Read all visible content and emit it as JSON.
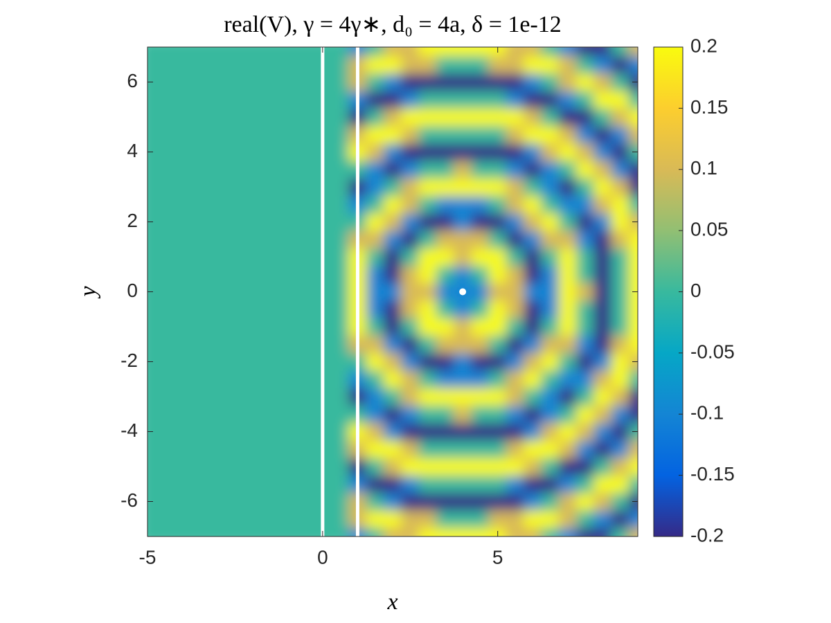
{
  "chart_data": {
    "type": "heatmap",
    "title": "real(V), γ = 4γ∗, d₀ = 4a, δ = 1e-12",
    "xlabel": "x",
    "ylabel": "y",
    "xlim": [
      -5,
      9
    ],
    "ylim": [
      -7,
      7
    ],
    "xticks": [
      -5,
      0,
      5
    ],
    "yticks": [
      -6,
      -4,
      -2,
      0,
      2,
      4,
      6
    ],
    "colorbar": {
      "lim": [
        -0.2,
        0.2
      ],
      "ticks": [
        -0.2,
        -0.15,
        -0.1,
        -0.05,
        0,
        0.05,
        0.1,
        0.15,
        0.2
      ]
    },
    "colormap": [
      "#352a87",
      "#0363e1",
      "#1485d4",
      "#06a7c6",
      "#38b99e",
      "#92bf73",
      "#d9ba56",
      "#fcce2e",
      "#f9fb0e"
    ],
    "walls": [
      0,
      1
    ],
    "source": {
      "x": 4,
      "y": 0
    },
    "marker_color": "#ffffff",
    "x": [
      -5,
      -4.5,
      -4,
      -3.5,
      -3,
      -2.5,
      -2,
      -1.5,
      -1,
      -0.5,
      0,
      0.5,
      1,
      1.5,
      2,
      2.5,
      3,
      3.5,
      4,
      4.5,
      5,
      5.5,
      6,
      6.5,
      7,
      7.5,
      8,
      8.5,
      9
    ],
    "y": [
      -7,
      -6.5,
      -6,
      -5.5,
      -5,
      -4.5,
      -4,
      -3.5,
      -3,
      -2.5,
      -2,
      -1.5,
      -1,
      -0.5,
      0,
      0.5,
      1,
      1.5,
      2,
      2.5,
      3,
      3.5,
      4,
      4.5,
      5,
      5.5,
      6,
      6.5,
      7
    ],
    "z": [
      [
        0,
        0,
        0,
        0,
        0,
        0,
        0,
        0,
        0,
        0,
        0,
        0,
        -0.1,
        0,
        0.1,
        0.1,
        0.2,
        0.2,
        0.2,
        0.2,
        0.2,
        0.1,
        0.1,
        0,
        -0.1,
        -0.2,
        -0.2,
        0,
        0.1
      ],
      [
        0,
        0,
        0,
        0,
        0,
        0,
        0,
        0,
        0,
        0,
        0,
        0,
        0.1,
        0.2,
        0.2,
        0.1,
        0.1,
        0,
        0,
        0,
        0.1,
        0.1,
        0.2,
        0.2,
        0.1,
        0,
        -0.1,
        -0.2,
        -0.1
      ],
      [
        0,
        0,
        0,
        0,
        0,
        0,
        0,
        0,
        0,
        0,
        0,
        0,
        0.1,
        0,
        -0.1,
        -0.2,
        -0.2,
        -0.2,
        -0.2,
        -0.2,
        -0.2,
        -0.2,
        -0.1,
        0,
        0.1,
        0.2,
        0.1,
        0,
        -0.2
      ],
      [
        0,
        0,
        0,
        0,
        0,
        0,
        0,
        0,
        0,
        0,
        0,
        0,
        -0.1,
        -0.2,
        -0.2,
        -0.1,
        0,
        0,
        0,
        0,
        0,
        -0.1,
        -0.2,
        -0.2,
        -0.1,
        0,
        0.2,
        0.2,
        0
      ],
      [
        0,
        0,
        0,
        0,
        0,
        0,
        0,
        0,
        0,
        0,
        0,
        0,
        -0.2,
        0,
        0.1,
        0.2,
        0.2,
        0.2,
        0.2,
        0.2,
        0.2,
        0.2,
        0.1,
        0,
        -0.2,
        -0.2,
        0,
        0.1,
        0.2
      ],
      [
        0,
        0,
        0,
        0,
        0,
        0,
        0,
        0,
        0,
        0,
        0,
        0,
        0.1,
        0.2,
        0.2,
        0.1,
        0,
        0,
        0,
        0,
        0,
        0.1,
        0.2,
        0.2,
        0.1,
        -0.1,
        -0.2,
        -0.1,
        0.1
      ],
      [
        0,
        0,
        0,
        0,
        0,
        0,
        0,
        0,
        0,
        0,
        0,
        0,
        0.2,
        0.1,
        -0.1,
        -0.2,
        -0.2,
        -0.2,
        -0.2,
        -0.2,
        -0.2,
        -0.2,
        -0.1,
        0.1,
        0.2,
        0.1,
        -0.1,
        -0.2,
        0
      ],
      [
        0,
        0,
        0,
        0,
        0,
        0,
        0,
        0,
        0,
        0,
        0,
        0,
        0,
        -0.1,
        -0.2,
        -0.1,
        0,
        0,
        0.1,
        0,
        0,
        -0.1,
        -0.2,
        -0.1,
        0,
        0.2,
        0.1,
        -0.1,
        -0.2
      ],
      [
        0,
        0,
        0,
        0,
        0,
        0,
        0,
        0,
        0,
        0,
        0,
        0,
        -0.2,
        -0.1,
        0,
        0.1,
        0.2,
        0.2,
        0.2,
        0.2,
        0.2,
        0.1,
        0,
        -0.1,
        -0.2,
        0,
        0.2,
        0.1,
        -0.2
      ],
      [
        0,
        0,
        0,
        0,
        0,
        0,
        0,
        0,
        0,
        0,
        0,
        0,
        -0.1,
        0,
        0.2,
        0.1,
        0,
        -0.1,
        -0.1,
        -0.1,
        0,
        0.1,
        0.2,
        0,
        -0.1,
        -0.1,
        0.1,
        0.2,
        0
      ],
      [
        0,
        0,
        0,
        0,
        0,
        0,
        0,
        0,
        0,
        0,
        0,
        0,
        0,
        0.2,
        0.1,
        -0.1,
        -0.2,
        -0.2,
        -0.1,
        -0.2,
        -0.2,
        -0.1,
        0.1,
        0.2,
        0,
        -0.2,
        -0.1,
        0.2,
        0.1
      ],
      [
        0,
        0,
        0,
        0,
        0,
        0,
        0,
        0,
        0,
        0,
        0,
        0,
        0.1,
        0.1,
        -0.1,
        -0.2,
        0,
        0.1,
        0.1,
        0.1,
        0,
        -0.2,
        -0.1,
        0.1,
        0.1,
        -0.1,
        -0.2,
        0.1,
        0.2
      ],
      [
        0,
        0,
        0,
        0,
        0,
        0,
        0,
        0,
        0,
        0,
        0,
        0,
        0.2,
        0,
        -0.2,
        0,
        0.2,
        0.2,
        0.1,
        0.2,
        0.2,
        0,
        -0.2,
        0,
        0.2,
        0,
        -0.2,
        0,
        0.2
      ],
      [
        0,
        0,
        0,
        0,
        0,
        0,
        0,
        0,
        0,
        0,
        0,
        0,
        0.2,
        -0.1,
        -0.2,
        0.1,
        0.2,
        0,
        -0.1,
        0,
        0.2,
        0.1,
        -0.2,
        -0.1,
        0.2,
        0,
        -0.2,
        0,
        0.2
      ],
      [
        0,
        0,
        0,
        0,
        0,
        0,
        0,
        0,
        0,
        0,
        0,
        0,
        0.2,
        -0.1,
        -0.1,
        0.1,
        0.1,
        -0.1,
        -0.1,
        -0.1,
        0.1,
        0.1,
        -0.1,
        -0.1,
        0.2,
        0.1,
        -0.2,
        0,
        0.2
      ],
      [
        0,
        0,
        0,
        0,
        0,
        0,
        0,
        0,
        0,
        0,
        0,
        0,
        0.2,
        -0.1,
        -0.2,
        0.1,
        0.2,
        0,
        -0.1,
        0,
        0.2,
        0.1,
        -0.2,
        -0.1,
        0.2,
        0,
        -0.2,
        0,
        0.2
      ],
      [
        0,
        0,
        0,
        0,
        0,
        0,
        0,
        0,
        0,
        0,
        0,
        0,
        0.2,
        0,
        -0.2,
        0,
        0.2,
        0.2,
        0.1,
        0.2,
        0.2,
        0,
        -0.2,
        0,
        0.2,
        0,
        -0.2,
        0,
        0.2
      ],
      [
        0,
        0,
        0,
        0,
        0,
        0,
        0,
        0,
        0,
        0,
        0,
        0,
        0.1,
        0.1,
        -0.1,
        -0.2,
        0,
        0.1,
        0.1,
        0.1,
        0,
        -0.2,
        -0.1,
        0.1,
        0.1,
        -0.1,
        -0.2,
        0.1,
        0.2
      ],
      [
        0,
        0,
        0,
        0,
        0,
        0,
        0,
        0,
        0,
        0,
        0,
        0,
        0,
        0.2,
        0.1,
        -0.1,
        -0.2,
        -0.2,
        -0.1,
        -0.2,
        -0.2,
        -0.1,
        0.1,
        0.2,
        0,
        -0.2,
        -0.1,
        0.2,
        0.1
      ],
      [
        0,
        0,
        0,
        0,
        0,
        0,
        0,
        0,
        0,
        0,
        0,
        0,
        -0.1,
        0,
        0.2,
        0.1,
        0,
        -0.1,
        -0.1,
        -0.1,
        0,
        0.1,
        0.2,
        0,
        -0.1,
        -0.1,
        0.1,
        0.2,
        0
      ],
      [
        0,
        0,
        0,
        0,
        0,
        0,
        0,
        0,
        0,
        0,
        0,
        0,
        -0.2,
        -0.1,
        0,
        0.1,
        0.2,
        0.2,
        0.2,
        0.2,
        0.2,
        0.1,
        0,
        -0.1,
        -0.2,
        0,
        0.2,
        0.1,
        -0.2
      ],
      [
        0,
        0,
        0,
        0,
        0,
        0,
        0,
        0,
        0,
        0,
        0,
        0,
        0,
        -0.1,
        -0.2,
        -0.1,
        0,
        0,
        0.1,
        0,
        0,
        -0.1,
        -0.2,
        -0.1,
        0,
        0.2,
        0.1,
        -0.1,
        -0.2
      ],
      [
        0,
        0,
        0,
        0,
        0,
        0,
        0,
        0,
        0,
        0,
        0,
        0,
        0.2,
        0.1,
        -0.1,
        -0.2,
        -0.2,
        -0.2,
        -0.2,
        -0.2,
        -0.2,
        -0.2,
        -0.1,
        0.1,
        0.2,
        0.1,
        -0.1,
        -0.2,
        0
      ],
      [
        0,
        0,
        0,
        0,
        0,
        0,
        0,
        0,
        0,
        0,
        0,
        0,
        0.1,
        0.2,
        0.2,
        0.1,
        0,
        0,
        0,
        0,
        0,
        0.1,
        0.2,
        0.2,
        0.1,
        -0.1,
        -0.2,
        -0.1,
        0.1
      ],
      [
        0,
        0,
        0,
        0,
        0,
        0,
        0,
        0,
        0,
        0,
        0,
        0,
        -0.2,
        0,
        0.1,
        0.2,
        0.2,
        0.2,
        0.2,
        0.2,
        0.2,
        0.2,
        0.1,
        0,
        -0.2,
        -0.2,
        0,
        0.1,
        0.2
      ],
      [
        0,
        0,
        0,
        0,
        0,
        0,
        0,
        0,
        0,
        0,
        0,
        0,
        -0.1,
        -0.2,
        -0.2,
        -0.1,
        0,
        0,
        0,
        0,
        0,
        -0.1,
        -0.2,
        -0.2,
        -0.1,
        0,
        0.2,
        0.2,
        0
      ],
      [
        0,
        0,
        0,
        0,
        0,
        0,
        0,
        0,
        0,
        0,
        0,
        0,
        0.1,
        0,
        -0.1,
        -0.2,
        -0.2,
        -0.2,
        -0.2,
        -0.2,
        -0.2,
        -0.2,
        -0.1,
        0,
        0.1,
        0.2,
        0.1,
        0,
        -0.2
      ],
      [
        0,
        0,
        0,
        0,
        0,
        0,
        0,
        0,
        0,
        0,
        0,
        0,
        0.1,
        0.2,
        0.2,
        0.1,
        0.1,
        0,
        0,
        0,
        0.1,
        0.1,
        0.2,
        0.2,
        0.1,
        0,
        -0.1,
        -0.2,
        -0.1
      ],
      [
        0,
        0,
        0,
        0,
        0,
        0,
        0,
        0,
        0,
        0,
        0,
        0,
        -0.1,
        0,
        0.1,
        0.1,
        0.2,
        0.2,
        0.2,
        0.2,
        0.2,
        0.1,
        0.1,
        0,
        -0.1,
        -0.2,
        -0.2,
        0,
        0.1
      ]
    ]
  }
}
